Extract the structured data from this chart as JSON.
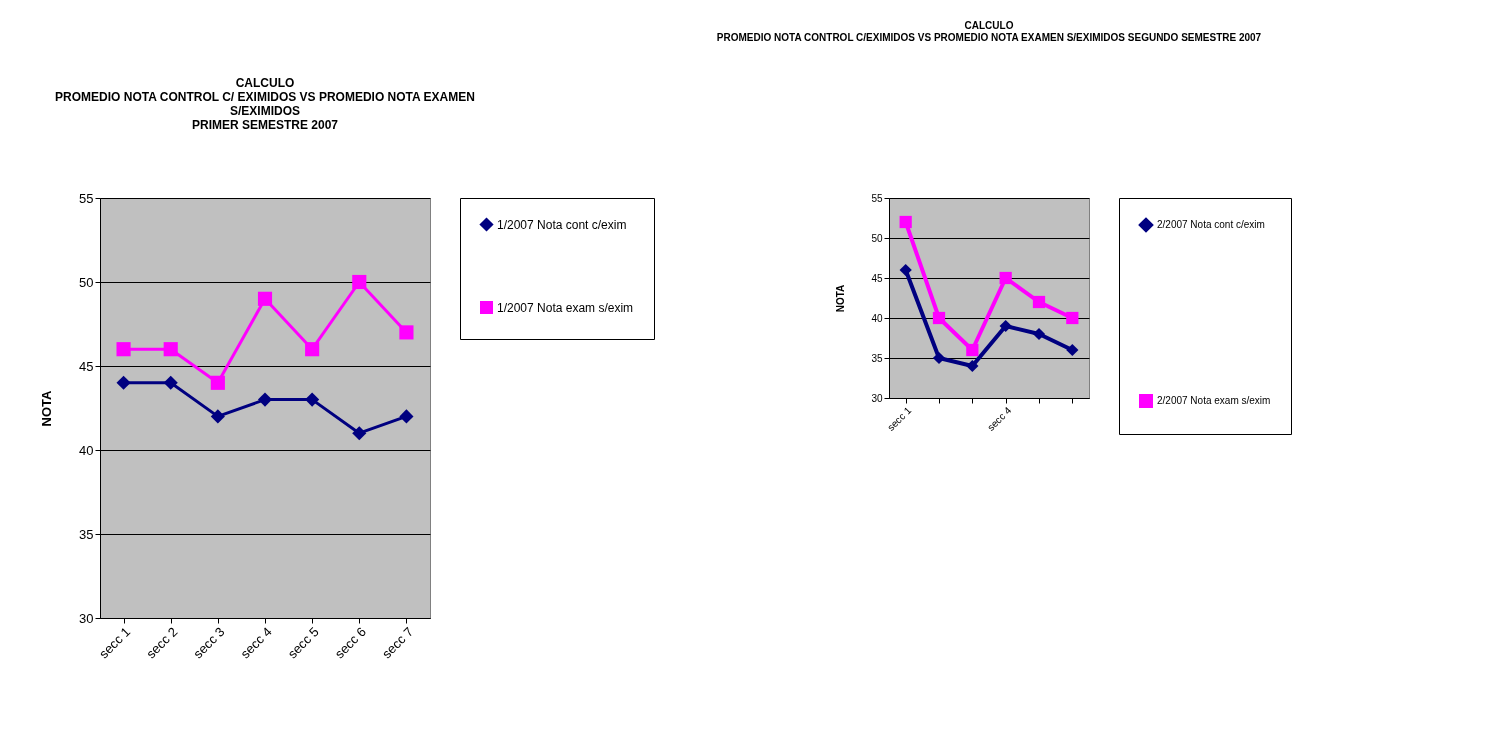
{
  "chart_data": [
    {
      "type": "line",
      "title": "CALCULO\nPROMEDIO NOTA CONTROL C/ EXIMIDOS VS PROMEDIO NOTA EXAMEN\nS/EXIMIDOS\nPRIMER SEMESTRE 2007",
      "ylabel": "NOTA",
      "categories": [
        "secc 1",
        "secc 2",
        "secc 3",
        "secc 4",
        "secc 5",
        "secc 6",
        "secc 7"
      ],
      "series": [
        {
          "name": "1/2007 Nota cont c/exim",
          "color": "#000080",
          "marker": "diamond",
          "values": [
            44,
            44,
            42,
            43,
            43,
            41,
            42
          ]
        },
        {
          "name": "1/2007 Nota exam s/exim",
          "color": "#ff00ff",
          "marker": "square",
          "values": [
            46,
            46,
            44,
            49,
            46,
            50,
            47
          ]
        }
      ],
      "ylim": [
        30,
        55
      ],
      "yticks": [
        30,
        35,
        40,
        45,
        50,
        55
      ],
      "grid": "y",
      "legend": "right",
      "line_style": "solid"
    },
    {
      "type": "line",
      "title": "CALCULO\nPROMEDIO NOTA CONTROL C/EXIMIDOS VS PROMEDIO NOTA EXAMEN S/EXIMIDOS SEGUNDO SEMESTRE 2007",
      "ylabel": "NOTA",
      "categories": [
        "secc 1",
        null,
        null,
        "secc 4",
        null,
        null
      ],
      "series": [
        {
          "name": "2/2007 Nota cont c/exim",
          "color": "#000080",
          "marker": "diamond",
          "values": [
            46,
            35,
            34,
            39,
            38,
            36
          ]
        },
        {
          "name": "2/2007 Nota exam s/exim",
          "color": "#ff00ff",
          "marker": "square",
          "values": [
            52,
            40,
            36,
            45,
            42,
            40
          ]
        }
      ],
      "ylim": [
        30,
        55
      ],
      "yticks": [
        30,
        35,
        40,
        45,
        50,
        55
      ],
      "grid": "y",
      "legend": "right",
      "line_style": "solid"
    }
  ]
}
